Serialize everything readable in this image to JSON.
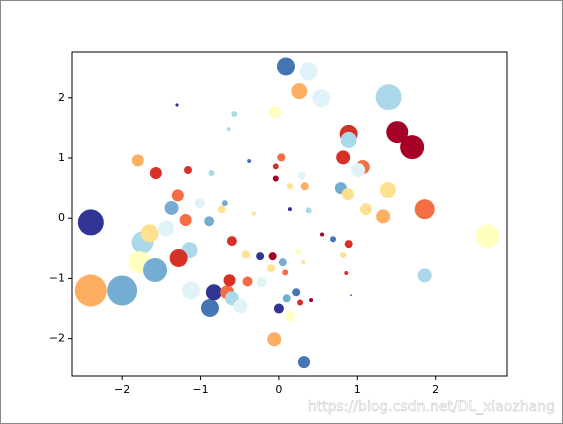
{
  "chart_data": {
    "type": "scatter",
    "x": [
      -2.4,
      -2.4,
      -2.0,
      -1.74,
      -1.78,
      -1.58,
      -1.65,
      -1.44,
      -1.37,
      -1.29,
      -1.19,
      -1.14,
      -1.28,
      -1.12,
      -0.88,
      -0.83,
      -0.66,
      -0.6,
      -0.49,
      -0.63,
      -0.4,
      -0.6,
      -1.8,
      -1.57,
      -1.16,
      -0.89,
      -1.01,
      -0.73,
      -0.69,
      -0.86,
      -0.57,
      -1.3,
      -0.64,
      -0.38,
      -0.05,
      0.09,
      0.38,
      0.26,
      0.54,
      1.4,
      1.51,
      1.7,
      0.89,
      0.89,
      0.82,
      1.07,
      1.01,
      1.39,
      0.79,
      0.88,
      1.11,
      1.33,
      1.86,
      2.66,
      1.86,
      0.89,
      0.82,
      0.86,
      0.69,
      0.55,
      0.92,
      0.33,
      0.29,
      0.14,
      0.03,
      -0.04,
      -0.04,
      0.14,
      0.38,
      0.24,
      0.05,
      0.08,
      0.31,
      -0.08,
      -0.1,
      -0.24,
      -0.42,
      -0.22,
      0.22,
      0.1,
      0.27,
      0.0,
      0.14,
      -0.06,
      0.32,
      -0.32,
      0.41
    ],
    "series": [
      {
        "values": [
          -0.07,
          -1.2,
          -1.2,
          -0.4,
          -0.73,
          -0.86,
          -0.25,
          -0.17,
          0.17,
          0.38,
          -0.03,
          -0.53,
          -0.66,
          -1.2,
          -1.49,
          -1.23,
          -1.23,
          -1.33,
          -1.46,
          -1.03,
          -1.05,
          -0.38,
          0.96,
          0.75,
          0.8,
          -0.05,
          0.25,
          0.15,
          0.25,
          0.75,
          1.73,
          1.88,
          1.48,
          0.95,
          1.76,
          2.52,
          2.44,
          2.11,
          1.99,
          2.01,
          1.43,
          1.18,
          1.4,
          1.3,
          1.01,
          0.85,
          0.8,
          0.47,
          0.5,
          0.4,
          0.15,
          0.03,
          0.15,
          -0.3,
          -0.95,
          -0.43,
          -0.61,
          -0.91,
          -0.35,
          -0.27,
          -1.28,
          0.53,
          0.71,
          0.53,
          1.01,
          0.86,
          0.66,
          0.15,
          0.13,
          -0.55,
          -0.73,
          -0.9,
          -0.73,
          -0.63,
          -0.83,
          -0.63,
          -0.6,
          -1.06,
          -1.23,
          -1.33,
          -1.4,
          -1.5,
          -1.63,
          -2.01,
          -2.39,
          0.08,
          -1.36
        ],
        "sizes": [
          338,
          512,
          450,
          242,
          242,
          288,
          162,
          128,
          98,
          72,
          72,
          128,
          162,
          162,
          162,
          128,
          98,
          98,
          98,
          72,
          50,
          50,
          72,
          72,
          32,
          50,
          50,
          32,
          18,
          18,
          18,
          5,
          8,
          8,
          72,
          162,
          162,
          128,
          162,
          338,
          242,
          288,
          162,
          128,
          98,
          98,
          98,
          128,
          72,
          72,
          72,
          98,
          200,
          288,
          98,
          32,
          18,
          8,
          18,
          8,
          2,
          32,
          32,
          18,
          32,
          18,
          18,
          8,
          18,
          18,
          32,
          18,
          8,
          32,
          32,
          32,
          32,
          50,
          32,
          32,
          18,
          50,
          50,
          98,
          72,
          8,
          8
        ],
        "colors": [
          "#313695",
          "#fdae61",
          "#74add1",
          "#abd9e9",
          "#ffffbf",
          "#74add1",
          "#fee090",
          "#e0f3f8",
          "#74add1",
          "#f46d43",
          "#f46d43",
          "#abd9e9",
          "#d73027",
          "#e0f3f8",
          "#4575b4",
          "#313695",
          "#f46d43",
          "#abd9e9",
          "#e0f3f8",
          "#d73027",
          "#f46d43",
          "#d73027",
          "#fdae61",
          "#d73027",
          "#d73027",
          "#74add1",
          "#e0f3f8",
          "#fee090",
          "#74add1",
          "#abd9e9",
          "#abd9e9",
          "#313695",
          "#abd9e9",
          "#4575b4",
          "#ffffbf",
          "#4575b4",
          "#e0f3f8",
          "#fdae61",
          "#e0f3f8",
          "#abd9e9",
          "#a50026",
          "#a50026",
          "#d73027",
          "#abd9e9",
          "#d73027",
          "#f46d43",
          "#e0f3f8",
          "#fee090",
          "#74add1",
          "#fee090",
          "#fee090",
          "#fdae61",
          "#f46d43",
          "#ffffbf",
          "#abd9e9",
          "#d73027",
          "#fee090",
          "#d73027",
          "#4575b4",
          "#a50026",
          "#4575b4",
          "#fdae61",
          "#e0f3f8",
          "#fee090",
          "#f46d43",
          "#d73027",
          "#a50026",
          "#313695",
          "#abd9e9",
          "#ffffbf",
          "#74add1",
          "#f46d43",
          "#fee090",
          "#a50026",
          "#fee090",
          "#313695",
          "#fee090",
          "#e0f3f8",
          "#4575b4",
          "#74add1",
          "#d73027",
          "#313695",
          "#ffffbf",
          "#fdae61",
          "#4575b4",
          "#fee090",
          "#a50026"
        ]
      }
    ],
    "xlim": [
      -2.64,
      2.91
    ],
    "ylim": [
      -2.62,
      2.76
    ],
    "xticks": [
      {
        "value": -2,
        "label": "−2"
      },
      {
        "value": -1,
        "label": "−1"
      },
      0,
      1,
      2
    ],
    "yticks": [
      {
        "value": -2,
        "label": "−2"
      },
      {
        "value": -1,
        "label": "−1"
      },
      0,
      1,
      2
    ],
    "grid": false,
    "watermark": "https://blog.csdn.net/DL_xiaozhang"
  }
}
